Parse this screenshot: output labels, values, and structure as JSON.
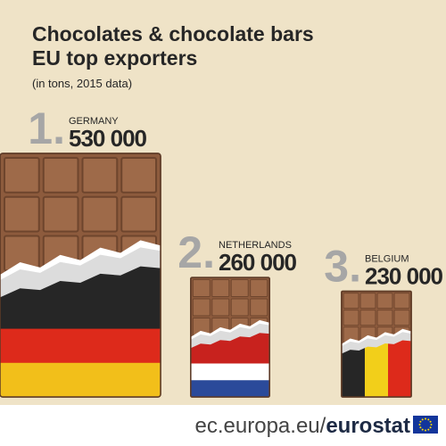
{
  "chart_data": {
    "type": "pictogram",
    "title": "Chocolates & chocolate bars",
    "title_line2": "EU top exporters",
    "subtitle": "(in tons, 2015 data)",
    "categories": [
      "GERMANY",
      "NETHERLANDS",
      "BELGIUM"
    ],
    "ranks": [
      "1.",
      "2.",
      "3."
    ],
    "values": [
      530000,
      260000,
      230000
    ],
    "value_labels": [
      "530 000",
      "260 000",
      "230 000"
    ],
    "flag_colors": [
      [
        "#262626",
        "#dd2a1b",
        "#f2bf1a"
      ],
      [
        "#c8221e",
        "#ffffff",
        "#2b4a9a"
      ],
      [
        "#262626",
        "#f2cf1a",
        "#dd2a1b"
      ]
    ],
    "flag_stripes": [
      "horizontal",
      "horizontal",
      "vertical"
    ],
    "order": [
      1,
      0,
      2
    ]
  },
  "footer": {
    "url": "ec.europa.eu/",
    "brand": "eurostat"
  }
}
